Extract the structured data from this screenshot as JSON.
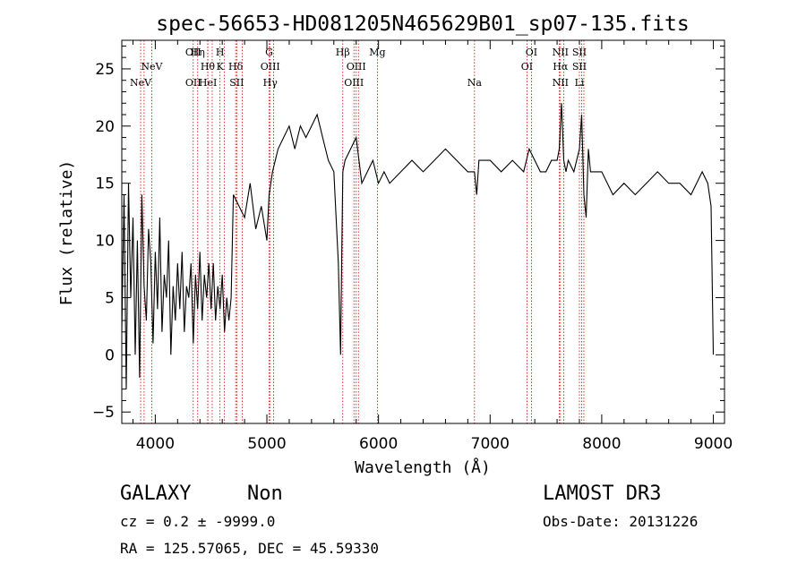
{
  "chart_data": {
    "type": "line",
    "title": "spec-56653-HD081205N465629B01_sp07-135.fits",
    "xlabel": "Wavelength (Å)",
    "ylabel": "Flux (relative)",
    "xlim": [
      3700,
      9100
    ],
    "ylim": [
      -6,
      27.5
    ],
    "x_ticks": [
      4000,
      5000,
      6000,
      7000,
      8000,
      9000
    ],
    "y_ticks": [
      -5,
      0,
      5,
      10,
      15,
      20,
      25
    ],
    "grid": false,
    "line_color": "#000000",
    "marker_color": "#cc0000",
    "series": [
      {
        "x": [
          3700,
          3720,
          3740,
          3760,
          3780,
          3800,
          3820,
          3840,
          3860,
          3880,
          3900,
          3920,
          3940,
          3960,
          3980,
          4000,
          4020,
          4040,
          4060,
          4080,
          4100,
          4120,
          4140,
          4160,
          4180,
          4200,
          4220,
          4240,
          4260,
          4280,
          4300,
          4320,
          4340,
          4360,
          4380,
          4400,
          4420,
          4440,
          4460,
          4480,
          4500,
          4520,
          4540,
          4560,
          4580,
          4600,
          4620,
          4640,
          4660,
          4680,
          4700,
          4750,
          4800,
          4850,
          4900,
          4950,
          5000,
          5020,
          5050,
          5100,
          5150,
          5200,
          5250,
          5300,
          5350,
          5400,
          5450,
          5500,
          5550,
          5600,
          5620,
          5640,
          5660,
          5670,
          5680,
          5700,
          5750,
          5800,
          5850,
          5900,
          5950,
          6000,
          6050,
          6100,
          6200,
          6300,
          6400,
          6500,
          6600,
          6700,
          6800,
          6860,
          6880,
          6900,
          7000,
          7100,
          7200,
          7300,
          7350,
          7400,
          7450,
          7500,
          7550,
          7600,
          7620,
          7640,
          7660,
          7680,
          7700,
          7750,
          7800,
          7820,
          7840,
          7860,
          7880,
          7900,
          8000,
          8100,
          8200,
          8300,
          8400,
          8500,
          8600,
          8700,
          8800,
          8900,
          8950,
          8980,
          9000
        ],
        "y": [
          2,
          14,
          -3,
          15,
          5,
          12,
          0,
          10,
          -2,
          14,
          6,
          3,
          11,
          8,
          1,
          9,
          4,
          12,
          2,
          7,
          5,
          10,
          0,
          6,
          3,
          8,
          4,
          9,
          2,
          6,
          5,
          8,
          1,
          7,
          4,
          9,
          3,
          7,
          5,
          8,
          4,
          8,
          3,
          6,
          4,
          7,
          2,
          5,
          3,
          5,
          14,
          13,
          12,
          15,
          11,
          13,
          10,
          14,
          16,
          18,
          19,
          20,
          18,
          20,
          19,
          20,
          21,
          19,
          17,
          16,
          12,
          8,
          0,
          8,
          16,
          17,
          18,
          19,
          15,
          16,
          17,
          15,
          16,
          15,
          16,
          17,
          16,
          17,
          18,
          17,
          16,
          16,
          14,
          17,
          17,
          16,
          17,
          16,
          18,
          17,
          16,
          16,
          17,
          17,
          18,
          22,
          17,
          16,
          17,
          16,
          18,
          21,
          14,
          12,
          18,
          16,
          16,
          14,
          15,
          14,
          15,
          16,
          15,
          15,
          14,
          16,
          15,
          13,
          0
        ]
      }
    ],
    "lines": [
      {
        "x": 3869,
        "label": "NeV",
        "row": 3
      },
      {
        "x": 3968,
        "label": "NeV",
        "row": 2
      },
      {
        "x": 4340,
        "label": "OII",
        "row": 1
      },
      {
        "x": 4340,
        "label": "OII",
        "row": 3
      },
      {
        "x": 4380,
        "label": "Hη",
        "row": 1
      },
      {
        "x": 4470,
        "label": "Hθ",
        "row": 2
      },
      {
        "x": 4471,
        "label": "HeI",
        "row": 3
      },
      {
        "x": 4580,
        "label": "H",
        "row": 1
      },
      {
        "x": 4580,
        "label": "K",
        "row": 2
      },
      {
        "x": 4720,
        "label": "Hδ",
        "row": 2
      },
      {
        "x": 4730,
        "label": "SII",
        "row": 3
      },
      {
        "x": 5020,
        "label": "G",
        "row": 1
      },
      {
        "x": 5030,
        "label": "OIII",
        "row": 2
      },
      {
        "x": 5030,
        "label": "Hγ",
        "row": 3
      },
      {
        "x": 5680,
        "label": "Hβ",
        "row": 1
      },
      {
        "x": 5800,
        "label": "OIII",
        "row": 2
      },
      {
        "x": 5780,
        "label": "OIII",
        "row": 3
      },
      {
        "x": 5990,
        "label": "Mg",
        "row": 1
      },
      {
        "x": 6860,
        "label": "Na",
        "row": 3
      },
      {
        "x": 7370,
        "label": "OI",
        "row": 1
      },
      {
        "x": 7330,
        "label": "OI",
        "row": 2
      },
      {
        "x": 7630,
        "label": "NII",
        "row": 1
      },
      {
        "x": 7630,
        "label": "Hα",
        "row": 2
      },
      {
        "x": 7630,
        "label": "NII",
        "row": 3
      },
      {
        "x": 7800,
        "label": "SII",
        "row": 1
      },
      {
        "x": 7800,
        "label": "SII",
        "row": 2
      },
      {
        "x": 7800,
        "label": "Li",
        "row": 3
      }
    ],
    "extra_markers": [
      3900,
      4510,
      4620,
      4780,
      5060,
      5820,
      7620,
      7660,
      7820,
      7840
    ]
  },
  "info": {
    "object_class": "GALAXY",
    "subclass": "Non",
    "survey": "LAMOST DR3",
    "redshift": "cz = 0.2 ± -9999.0",
    "obs_date": "Obs-Date: 20131226",
    "coords": "RA = 125.57065, DEC =  45.59330"
  }
}
